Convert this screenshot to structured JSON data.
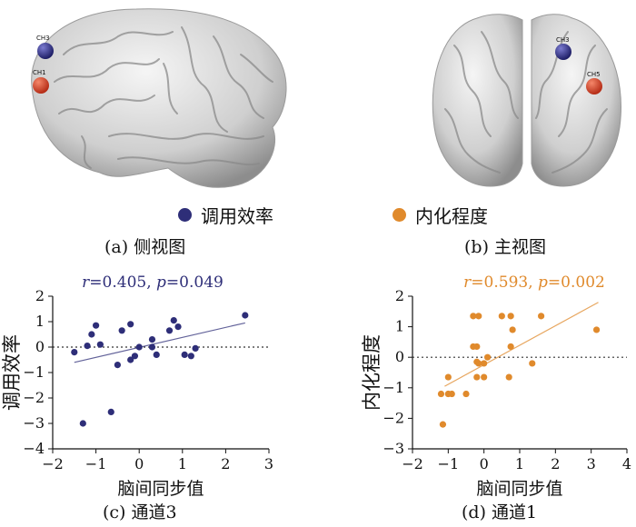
{
  "panels": {
    "a": {
      "caption": "(a) 侧视图",
      "labels": [
        "CH3",
        "CH1"
      ]
    },
    "b": {
      "caption": "(b) 主视图",
      "labels": [
        "CH3",
        "CH5"
      ]
    },
    "c": {
      "caption": "(c) 通道3"
    },
    "d": {
      "caption": "(d) 通道1"
    }
  },
  "legend": [
    {
      "label": "调用效率",
      "color": "#2e2e78"
    },
    {
      "label": "内化程度",
      "color": "#e08a2c"
    }
  ],
  "colors": {
    "electrode_blue": "#2f2f8a",
    "electrode_red": "#d4452a"
  },
  "chart_data": [
    {
      "type": "scatter",
      "annotation": "r=0.405, p=0.049",
      "annotation_parts": {
        "r_symbol": "r",
        "r_value": "=0.405, ",
        "p_symbol": "p",
        "p_value": "=0.049"
      },
      "xlabel": "脑间同步值",
      "ylabel": "调用效率",
      "xlim": [
        -2,
        3
      ],
      "ylim": [
        -4,
        2
      ],
      "xticks": [
        -2,
        -1,
        0,
        1,
        2,
        3
      ],
      "yticks": [
        -4,
        -3,
        -2,
        -1,
        0,
        1,
        2
      ],
      "color": "#2e2e78",
      "reference_line_y": 0,
      "fit": {
        "x": [
          -1.5,
          2.45
        ],
        "y": [
          -0.6,
          0.95
        ]
      },
      "points": [
        [
          -1.5,
          -0.2
        ],
        [
          -1.2,
          0.05
        ],
        [
          -1.1,
          0.5
        ],
        [
          -1.0,
          0.85
        ],
        [
          -0.9,
          0.1
        ],
        [
          -0.5,
          -0.7
        ],
        [
          -0.4,
          0.65
        ],
        [
          -0.2,
          0.9
        ],
        [
          -0.2,
          -0.5
        ],
        [
          -0.1,
          -0.35
        ],
        [
          0.0,
          0.0
        ],
        [
          0.3,
          0.0
        ],
        [
          0.3,
          0.3
        ],
        [
          0.4,
          -0.3
        ],
        [
          0.7,
          0.65
        ],
        [
          0.8,
          1.05
        ],
        [
          0.9,
          0.8
        ],
        [
          1.05,
          -0.3
        ],
        [
          1.2,
          -0.35
        ],
        [
          1.3,
          -0.05
        ],
        [
          2.45,
          1.25
        ],
        [
          -1.3,
          -3.0
        ],
        [
          -0.65,
          -2.55
        ]
      ]
    },
    {
      "type": "scatter",
      "annotation": "r=0.593, p=0.002",
      "annotation_parts": {
        "r_symbol": "r",
        "r_value": "=0.593, ",
        "p_symbol": "p",
        "p_value": "=0.002"
      },
      "xlabel": "脑间同步值",
      "ylabel": "内化程度",
      "xlim": [
        -2,
        4
      ],
      "ylim": [
        -3,
        2
      ],
      "xticks": [
        -2,
        -1,
        0,
        1,
        2,
        3,
        4
      ],
      "yticks": [
        -3,
        -2,
        -1,
        0,
        1,
        2
      ],
      "color": "#e08a2c",
      "reference_line_y": 0,
      "fit": {
        "x": [
          -1.1,
          3.2
        ],
        "y": [
          -0.95,
          1.8
        ]
      },
      "points": [
        [
          -1.2,
          -1.2
        ],
        [
          -1.0,
          -1.2
        ],
        [
          -0.9,
          -1.2
        ],
        [
          -1.0,
          -0.65
        ],
        [
          -0.5,
          -1.2
        ],
        [
          -1.15,
          -2.2
        ],
        [
          -0.3,
          0.35
        ],
        [
          -0.2,
          0.35
        ],
        [
          -0.3,
          1.35
        ],
        [
          -0.15,
          1.35
        ],
        [
          -0.2,
          -0.65
        ],
        [
          -0.15,
          -0.2
        ],
        [
          -0.2,
          -0.15
        ],
        [
          0.0,
          -0.2
        ],
        [
          0.0,
          -0.65
        ],
        [
          0.1,
          0.0
        ],
        [
          0.5,
          1.35
        ],
        [
          0.75,
          1.35
        ],
        [
          0.7,
          -0.65
        ],
        [
          0.75,
          0.35
        ],
        [
          0.8,
          0.9
        ],
        [
          1.35,
          -0.2
        ],
        [
          1.6,
          1.35
        ],
        [
          3.15,
          0.9
        ]
      ]
    }
  ]
}
